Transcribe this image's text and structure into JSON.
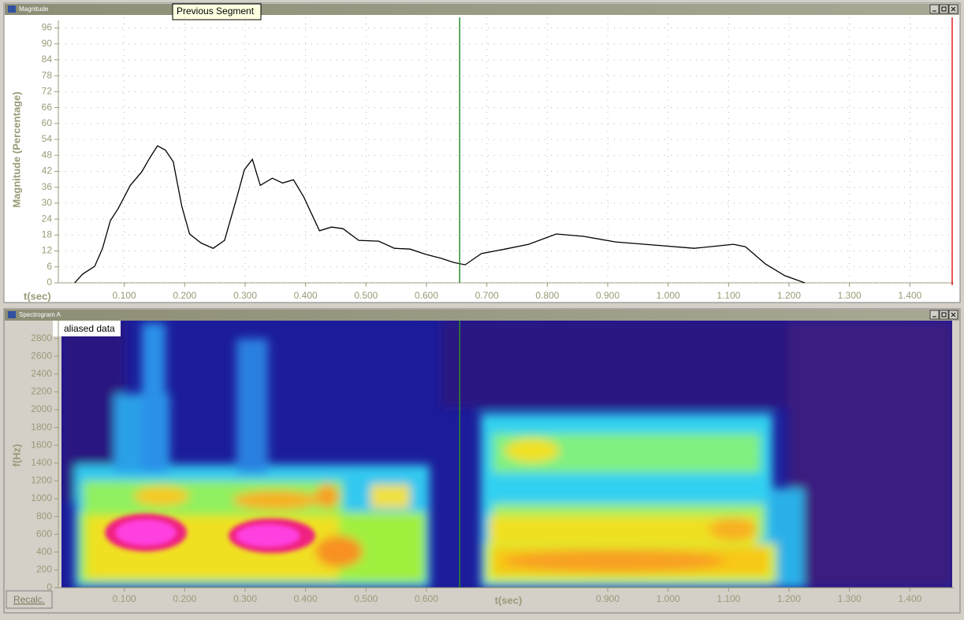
{
  "tooltip": "Previous Segment",
  "button": "Recalc.",
  "chart_data": [
    {
      "type": "line",
      "title": "Magnitude",
      "ylabel": "Magnitude (Percentage)",
      "xlabel": "t(sec)",
      "color": "#000000",
      "cursor": 0.655,
      "cursor_color": "#2e8b2e",
      "grid": true,
      "x": [
        0.018,
        0.031,
        0.051,
        0.064,
        0.077,
        0.09,
        0.11,
        0.129,
        0.142,
        0.155,
        0.168,
        0.181,
        0.195,
        0.208,
        0.227,
        0.247,
        0.266,
        0.286,
        0.299,
        0.312,
        0.325,
        0.345,
        0.362,
        0.38,
        0.397,
        0.423,
        0.443,
        0.462,
        0.488,
        0.521,
        0.547,
        0.573,
        0.599,
        0.625,
        0.645,
        0.664,
        0.691,
        0.73,
        0.769,
        0.815,
        0.86,
        0.913,
        0.978,
        1.043,
        1.108,
        1.128,
        1.161,
        1.193,
        1.226
      ],
      "values": [
        0,
        3.3,
        6.2,
        13,
        23.4,
        28,
        36.7,
        41.8,
        47,
        51.6,
        50,
        45.6,
        29,
        18.4,
        15,
        13,
        16,
        32,
        42.7,
        46.5,
        36.7,
        39.4,
        37.6,
        38.8,
        32.3,
        19.6,
        21,
        20.4,
        16,
        15.7,
        13,
        12.7,
        10.7,
        9.2,
        7.7,
        6.8,
        11,
        12.7,
        14.5,
        18.4,
        17.5,
        15.4,
        14.2,
        13,
        14.5,
        13.6,
        7.1,
        2.7,
        0
      ],
      "xlim": [
        0,
        1.47
      ],
      "ylim": [
        0,
        100
      ],
      "xticks": [
        {
          "value": 0.1,
          "label": "0.100"
        },
        {
          "value": 0.2,
          "label": "0.200"
        },
        {
          "value": 0.3,
          "label": "0.300"
        },
        {
          "value": 0.4,
          "label": "0.400"
        },
        {
          "value": 0.5,
          "label": "0.500"
        },
        {
          "value": 0.6,
          "label": "0.600"
        },
        {
          "value": 0.7,
          "label": "0.700"
        },
        {
          "value": 0.8,
          "label": "0.800"
        },
        {
          "value": 0.9,
          "label": "0.900"
        },
        {
          "value": 1.0,
          "label": "1.000"
        },
        {
          "value": 1.1,
          "label": "1.100"
        },
        {
          "value": 1.2,
          "label": "1.200"
        },
        {
          "value": 1.3,
          "label": "1.300"
        },
        {
          "value": 1.4,
          "label": "1.400"
        }
      ],
      "yticks": [
        0,
        6,
        12,
        18,
        24,
        30,
        36,
        42,
        48,
        54,
        60,
        66,
        72,
        78,
        84,
        90,
        96
      ]
    },
    {
      "type": "spectrogram",
      "title": "Spectrogram A",
      "ylabel": "f(Hz)",
      "xlabel": "t(sec)",
      "annotation": "aliased data",
      "cursor": 0.655,
      "cursor_color": "#2e8b2e",
      "xlim": [
        0,
        1.47
      ],
      "ylim": [
        0,
        3000
      ],
      "xticks": [
        {
          "value": 0.1,
          "label": "0.100"
        },
        {
          "value": 0.2,
          "label": "0.200"
        },
        {
          "value": 0.3,
          "label": "0.300"
        },
        {
          "value": 0.4,
          "label": "0.400"
        },
        {
          "value": 0.5,
          "label": "0.500"
        },
        {
          "value": 0.6,
          "label": "0.600"
        },
        {
          "value": 0.9,
          "label": "0.900"
        },
        {
          "value": 1.0,
          "label": "1.000"
        },
        {
          "value": 1.1,
          "label": "1.100"
        },
        {
          "value": 1.2,
          "label": "1.200"
        },
        {
          "value": 1.3,
          "label": "1.300"
        },
        {
          "value": 1.4,
          "label": "1.400"
        }
      ],
      "yticks": [
        0,
        200,
        400,
        600,
        800,
        1000,
        1200,
        1400,
        1600,
        1800,
        2000,
        2200,
        2400,
        2600,
        2800
      ]
    }
  ]
}
